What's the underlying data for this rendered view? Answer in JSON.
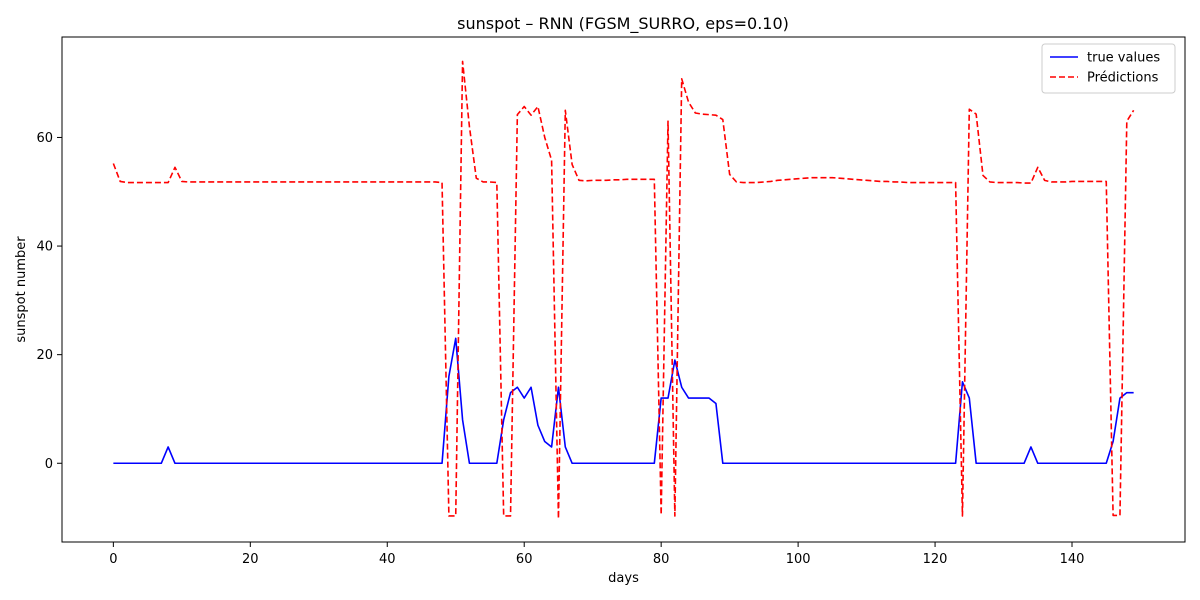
{
  "chart_data": {
    "type": "line",
    "title": "sunspot – RNN (FGSM_SURRO, eps=0.10)",
    "xlabel": "days",
    "ylabel": "sunspot number",
    "xlim": [
      -7.5,
      156.5
    ],
    "ylim": [
      -14.5,
      78.5
    ],
    "xticks": [
      0,
      20,
      40,
      60,
      80,
      100,
      120,
      140
    ],
    "yticks": [
      0,
      20,
      40,
      60
    ],
    "grid": false,
    "legend_position": "top-right",
    "series": [
      {
        "name": "true values",
        "color": "#0000ff",
        "style": "solid",
        "x": [
          0,
          1,
          2,
          3,
          4,
          5,
          6,
          7,
          8,
          9,
          10,
          11,
          12,
          13,
          14,
          15,
          16,
          17,
          18,
          19,
          20,
          21,
          22,
          23,
          24,
          25,
          26,
          27,
          28,
          29,
          30,
          31,
          32,
          33,
          34,
          35,
          36,
          37,
          38,
          39,
          40,
          41,
          42,
          43,
          44,
          45,
          46,
          47,
          48,
          49,
          50,
          51,
          52,
          53,
          54,
          55,
          56,
          57,
          58,
          59,
          60,
          61,
          62,
          63,
          64,
          65,
          66,
          67,
          68,
          69,
          70,
          71,
          72,
          73,
          74,
          75,
          76,
          77,
          78,
          79,
          80,
          81,
          82,
          83,
          84,
          85,
          86,
          87,
          88,
          89,
          90,
          91,
          92,
          93,
          94,
          95,
          96,
          97,
          98,
          99,
          100,
          101,
          102,
          103,
          104,
          105,
          106,
          107,
          108,
          109,
          110,
          111,
          112,
          113,
          114,
          115,
          116,
          117,
          118,
          119,
          120,
          121,
          122,
          123,
          124,
          125,
          126,
          127,
          128,
          129,
          130,
          131,
          132,
          133,
          134,
          135,
          136,
          137,
          138,
          139,
          140,
          141,
          142,
          143,
          144,
          145,
          146,
          147,
          148,
          149
        ],
        "values": [
          0,
          0,
          0,
          0,
          0,
          0,
          0,
          0,
          3,
          0,
          0,
          0,
          0,
          0,
          0,
          0,
          0,
          0,
          0,
          0,
          0,
          0,
          0,
          0,
          0,
          0,
          0,
          0,
          0,
          0,
          0,
          0,
          0,
          0,
          0,
          0,
          0,
          0,
          0,
          0,
          0,
          0,
          0,
          0,
          0,
          0,
          0,
          0,
          0,
          16,
          23,
          8,
          0,
          0,
          0,
          0,
          0,
          8,
          13,
          14,
          12,
          14,
          7,
          4,
          3,
          14,
          3,
          0,
          0,
          0,
          0,
          0,
          0,
          0,
          0,
          0,
          0,
          0,
          0,
          0,
          12,
          12,
          19,
          14,
          12,
          12,
          12,
          12,
          11,
          0,
          0,
          0,
          0,
          0,
          0,
          0,
          0,
          0,
          0,
          0,
          0,
          0,
          0,
          0,
          0,
          0,
          0,
          0,
          0,
          0,
          0,
          0,
          0,
          0,
          0,
          0,
          0,
          0,
          0,
          0,
          0,
          0,
          0,
          0,
          15,
          12,
          0,
          0,
          0,
          0,
          0,
          0,
          0,
          0,
          3,
          0,
          0,
          0,
          0,
          0,
          0,
          0,
          0,
          0,
          0,
          0,
          4,
          12,
          13,
          13
        ]
      },
      {
        "name": "Prédictions",
        "color": "#ff0000",
        "style": "dashed",
        "x": [
          0,
          1,
          2,
          3,
          4,
          5,
          6,
          7,
          8,
          9,
          10,
          11,
          12,
          13,
          14,
          15,
          16,
          17,
          18,
          19,
          20,
          21,
          22,
          23,
          24,
          25,
          26,
          27,
          28,
          29,
          30,
          31,
          32,
          33,
          34,
          35,
          36,
          37,
          38,
          39,
          40,
          41,
          42,
          43,
          44,
          45,
          46,
          47,
          48,
          49,
          50,
          51,
          52,
          53,
          54,
          55,
          56,
          57,
          58,
          59,
          60,
          61,
          62,
          63,
          64,
          65,
          66,
          67,
          68,
          69,
          70,
          71,
          72,
          73,
          74,
          75,
          76,
          77,
          78,
          79,
          80,
          81,
          82,
          83,
          84,
          85,
          86,
          87,
          88,
          89,
          90,
          91,
          92,
          93,
          94,
          95,
          96,
          97,
          98,
          99,
          100,
          101,
          102,
          103,
          104,
          105,
          106,
          107,
          108,
          109,
          110,
          111,
          112,
          113,
          114,
          115,
          116,
          117,
          118,
          119,
          120,
          121,
          122,
          123,
          124,
          125,
          126,
          127,
          128,
          129,
          130,
          131,
          132,
          133,
          134,
          135,
          136,
          137,
          138,
          139,
          140,
          141,
          142,
          143,
          144,
          145,
          146,
          147,
          148,
          149
        ],
        "values": [
          55.2,
          51.9,
          51.7,
          51.7,
          51.7,
          51.7,
          51.7,
          51.7,
          51.7,
          54.5,
          51.9,
          51.8,
          51.8,
          51.8,
          51.8,
          51.8,
          51.8,
          51.8,
          51.8,
          51.8,
          51.8,
          51.8,
          51.8,
          51.8,
          51.8,
          51.8,
          51.8,
          51.8,
          51.8,
          51.8,
          51.8,
          51.8,
          51.8,
          51.8,
          51.8,
          51.8,
          51.8,
          51.8,
          51.8,
          51.8,
          51.8,
          51.8,
          51.8,
          51.8,
          51.8,
          51.8,
          51.8,
          51.8,
          51.7,
          -9.7,
          -9.7,
          74.0,
          62.0,
          52.5,
          51.8,
          51.8,
          51.7,
          -9.7,
          -9.7,
          64.2,
          65.7,
          64.1,
          65.7,
          60.0,
          55.8,
          -10.2,
          65.0,
          55.0,
          52.1,
          52.0,
          52.1,
          52.1,
          52.1,
          52.2,
          52.2,
          52.3,
          52.3,
          52.3,
          52.3,
          52.3,
          -9.5,
          63.0,
          -9.7,
          70.8,
          66.5,
          64.5,
          64.3,
          64.2,
          64.1,
          63.3,
          53.2,
          51.8,
          51.7,
          51.7,
          51.7,
          51.8,
          51.9,
          52.1,
          52.2,
          52.3,
          52.4,
          52.5,
          52.6,
          52.6,
          52.6,
          52.6,
          52.5,
          52.4,
          52.3,
          52.2,
          52.1,
          52.0,
          51.9,
          51.9,
          51.8,
          51.8,
          51.7,
          51.7,
          51.7,
          51.7,
          51.7,
          51.7,
          51.7,
          51.7,
          -9.7,
          65.2,
          64.3,
          53.0,
          51.8,
          51.7,
          51.7,
          51.7,
          51.7,
          51.6,
          51.6,
          54.5,
          52.1,
          51.8,
          51.8,
          51.8,
          51.9,
          51.9,
          51.9,
          51.9,
          51.9,
          51.9,
          -9.6,
          -9.6,
          63.0,
          65.0
        ]
      }
    ]
  }
}
